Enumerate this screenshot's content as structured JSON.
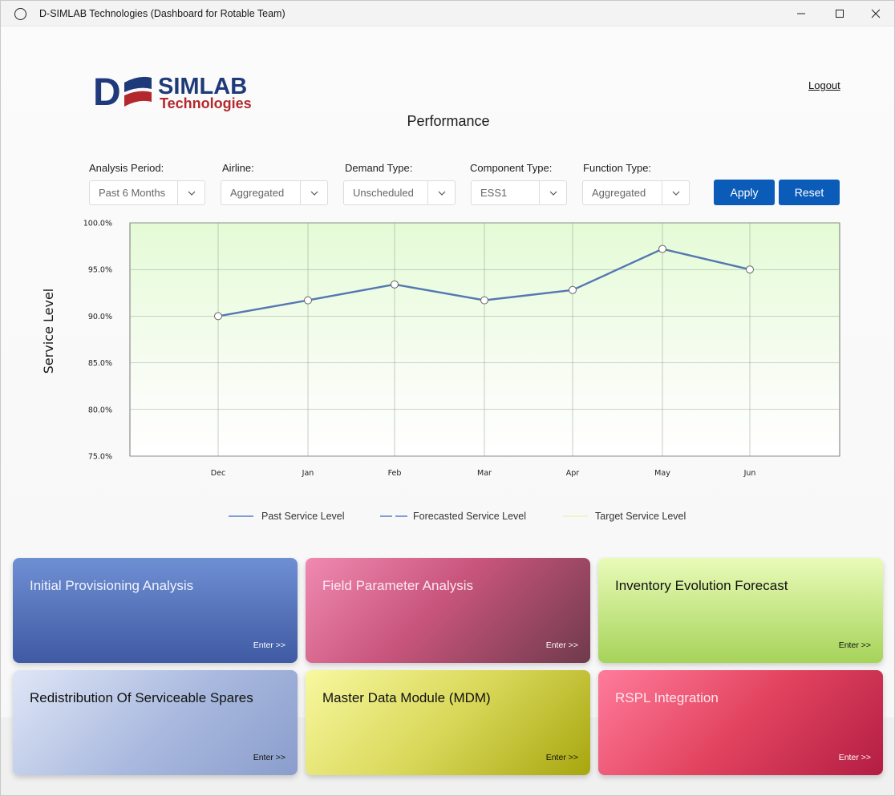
{
  "window": {
    "title": "D-SIMLAB Technologies (Dashboard for Rotable Team)"
  },
  "header": {
    "logo_main": "SIMLAB",
    "logo_letter": "D",
    "logo_sub": "Technologies",
    "logout_label": "Logout",
    "page_title": "Performance"
  },
  "filters": {
    "analysis_period": {
      "label": "Analysis Period:",
      "value": "Past 6 Months"
    },
    "airline": {
      "label": "Airline:",
      "value": "Aggregated"
    },
    "demand_type": {
      "label": "Demand Type:",
      "value": "Unscheduled"
    },
    "component_type": {
      "label": "Component Type:",
      "value": "ESS1"
    },
    "function_type": {
      "label": "Function Type:",
      "value": "Aggregated"
    },
    "apply_label": "Apply",
    "reset_label": "Reset"
  },
  "chart_data": {
    "type": "line",
    "ylabel": "Service Level",
    "xlabel": "",
    "categories": [
      "Dec",
      "Jan",
      "Feb",
      "Mar",
      "Apr",
      "May",
      "Jun"
    ],
    "series": [
      {
        "name": "Past Service Level",
        "values": [
          90.0,
          91.7,
          93.4,
          91.7,
          92.8,
          97.2,
          95.0
        ]
      }
    ],
    "legend": [
      "Past Service Level",
      "Forecasted Service Level",
      "Target Service Level"
    ],
    "yticks": [
      "100.0%",
      "95.0%",
      "90.0%",
      "85.0%",
      "80.0%",
      "75.0%"
    ],
    "ylim": [
      75,
      100
    ],
    "grid": true,
    "legend_position": "bottom",
    "colors": {
      "past": "#5577b2",
      "forecast": "#7f9fd4",
      "target": "#e8f5c4"
    }
  },
  "cards": [
    {
      "title": "Initial Provisioning Analysis",
      "enter": "Enter >>"
    },
    {
      "title": "Field Parameter Analysis",
      "enter": "Enter >>"
    },
    {
      "title": "Inventory Evolution Forecast",
      "enter": "Enter >>"
    },
    {
      "title": "Redistribution Of Serviceable Spares",
      "enter": "Enter >>"
    },
    {
      "title": "Master Data Module (MDM)",
      "enter": "Enter >>"
    },
    {
      "title": "RSPL Integration",
      "enter": "Enter >>"
    }
  ]
}
